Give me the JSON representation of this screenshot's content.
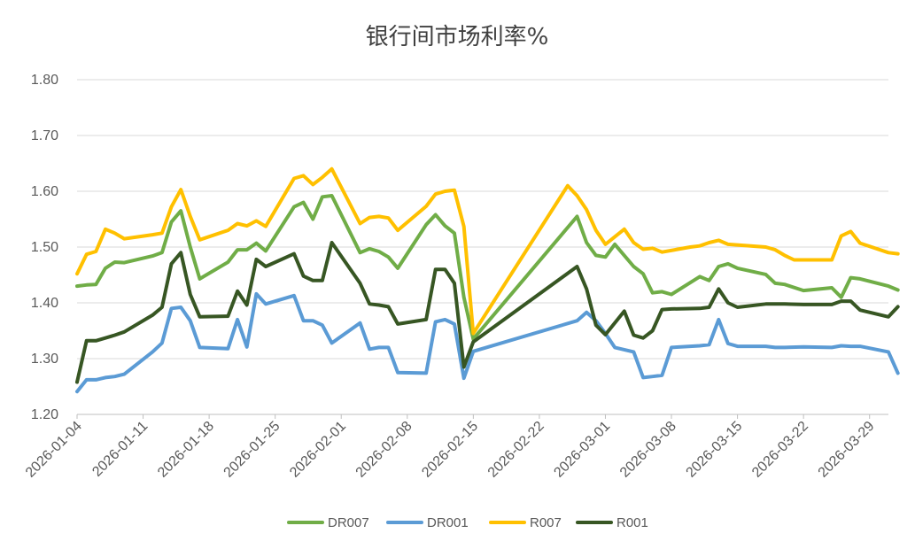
{
  "chart_data": {
    "type": "line",
    "title": "银行间市场利率%",
    "xlabel": "",
    "ylabel": "",
    "ylim": [
      1.2,
      1.8
    ],
    "yticks": [
      "1.20",
      "1.30",
      "1.40",
      "1.50",
      "1.60",
      "1.70",
      "1.80"
    ],
    "xlim": [
      "2026-01-04",
      "2026-03-31"
    ],
    "xticks": [
      "2026-01-04",
      "2026-01-11",
      "2026-01-18",
      "2026-01-25",
      "2026-02-01",
      "2026-02-08",
      "2026-02-15",
      "2026-02-22",
      "2026-03-01",
      "2026-03-08",
      "2026-03-15",
      "2026-03-22",
      "2026-03-29"
    ],
    "grid": true,
    "legend": "bottom",
    "series": [
      {
        "name": "DR007",
        "color": "#70ad47",
        "points": [
          [
            "2026-01-04",
            1.43
          ],
          [
            "2026-01-05",
            1.432
          ],
          [
            "2026-01-06",
            1.433
          ],
          [
            "2026-01-07",
            1.462
          ],
          [
            "2026-01-08",
            1.473
          ],
          [
            "2026-01-09",
            1.472
          ],
          [
            "2026-01-12",
            1.484
          ],
          [
            "2026-01-13",
            1.49
          ],
          [
            "2026-01-14",
            1.545
          ],
          [
            "2026-01-15",
            1.565
          ],
          [
            "2026-01-16",
            1.5
          ],
          [
            "2026-01-17",
            1.443
          ],
          [
            "2026-01-20",
            1.473
          ],
          [
            "2026-01-21",
            1.495
          ],
          [
            "2026-01-22",
            1.495
          ],
          [
            "2026-01-23",
            1.507
          ],
          [
            "2026-01-24",
            1.493
          ],
          [
            "2026-01-27",
            1.572
          ],
          [
            "2026-01-28",
            1.58
          ],
          [
            "2026-01-29",
            1.55
          ],
          [
            "2026-01-30",
            1.59
          ],
          [
            "2026-01-31",
            1.592
          ],
          [
            "2026-02-03",
            1.49
          ],
          [
            "2026-02-04",
            1.497
          ],
          [
            "2026-02-05",
            1.492
          ],
          [
            "2026-02-06",
            1.482
          ],
          [
            "2026-02-07",
            1.462
          ],
          [
            "2026-02-10",
            1.54
          ],
          [
            "2026-02-11",
            1.558
          ],
          [
            "2026-02-12",
            1.538
          ],
          [
            "2026-02-13",
            1.525
          ],
          [
            "2026-02-14",
            1.41
          ],
          [
            "2026-02-15",
            1.335
          ],
          [
            "2026-02-26",
            1.555
          ],
          [
            "2026-02-27",
            1.508
          ],
          [
            "2026-02-28",
            1.485
          ],
          [
            "2026-03-01",
            1.482
          ],
          [
            "2026-03-02",
            1.505
          ],
          [
            "2026-03-04",
            1.465
          ],
          [
            "2026-03-05",
            1.452
          ],
          [
            "2026-03-06",
            1.418
          ],
          [
            "2026-03-07",
            1.42
          ],
          [
            "2026-03-08",
            1.415
          ],
          [
            "2026-03-11",
            1.447
          ],
          [
            "2026-03-12",
            1.44
          ],
          [
            "2026-03-13",
            1.465
          ],
          [
            "2026-03-14",
            1.47
          ],
          [
            "2026-03-15",
            1.462
          ],
          [
            "2026-03-18",
            1.451
          ],
          [
            "2026-03-19",
            1.435
          ],
          [
            "2026-03-20",
            1.433
          ],
          [
            "2026-03-22",
            1.422
          ],
          [
            "2026-03-25",
            1.427
          ],
          [
            "2026-03-26",
            1.41
          ],
          [
            "2026-03-27",
            1.445
          ],
          [
            "2026-03-28",
            1.443
          ],
          [
            "2026-03-31",
            1.43
          ],
          [
            "2026-04-01",
            1.423
          ]
        ]
      },
      {
        "name": "DR001",
        "color": "#5b9bd5",
        "points": [
          [
            "2026-01-04",
            1.241
          ],
          [
            "2026-01-05",
            1.262
          ],
          [
            "2026-01-06",
            1.262
          ],
          [
            "2026-01-07",
            1.266
          ],
          [
            "2026-01-08",
            1.268
          ],
          [
            "2026-01-09",
            1.272
          ],
          [
            "2026-01-12",
            1.312
          ],
          [
            "2026-01-13",
            1.328
          ],
          [
            "2026-01-14",
            1.39
          ],
          [
            "2026-01-15",
            1.392
          ],
          [
            "2026-01-16",
            1.368
          ],
          [
            "2026-01-17",
            1.32
          ],
          [
            "2026-01-20",
            1.318
          ],
          [
            "2026-01-21",
            1.37
          ],
          [
            "2026-01-22",
            1.321
          ],
          [
            "2026-01-23",
            1.416
          ],
          [
            "2026-01-24",
            1.398
          ],
          [
            "2026-01-27",
            1.413
          ],
          [
            "2026-01-28",
            1.368
          ],
          [
            "2026-01-29",
            1.368
          ],
          [
            "2026-01-30",
            1.36
          ],
          [
            "2026-01-31",
            1.328
          ],
          [
            "2026-02-03",
            1.364
          ],
          [
            "2026-02-04",
            1.317
          ],
          [
            "2026-02-05",
            1.32
          ],
          [
            "2026-02-06",
            1.32
          ],
          [
            "2026-02-07",
            1.275
          ],
          [
            "2026-02-10",
            1.274
          ],
          [
            "2026-02-11",
            1.366
          ],
          [
            "2026-02-12",
            1.37
          ],
          [
            "2026-02-13",
            1.362
          ],
          [
            "2026-02-14",
            1.265
          ],
          [
            "2026-02-15",
            1.313
          ],
          [
            "2026-02-26",
            1.368
          ],
          [
            "2026-02-27",
            1.383
          ],
          [
            "2026-02-28",
            1.368
          ],
          [
            "2026-03-01",
            1.345
          ],
          [
            "2026-03-02",
            1.32
          ],
          [
            "2026-03-04",
            1.312
          ],
          [
            "2026-03-05",
            1.266
          ],
          [
            "2026-03-06",
            1.268
          ],
          [
            "2026-03-07",
            1.27
          ],
          [
            "2026-03-08",
            1.32
          ],
          [
            "2026-03-11",
            1.323
          ],
          [
            "2026-03-12",
            1.325
          ],
          [
            "2026-03-13",
            1.37
          ],
          [
            "2026-03-14",
            1.327
          ],
          [
            "2026-03-15",
            1.322
          ],
          [
            "2026-03-18",
            1.322
          ],
          [
            "2026-03-19",
            1.32
          ],
          [
            "2026-03-20",
            1.32
          ],
          [
            "2026-03-22",
            1.321
          ],
          [
            "2026-03-25",
            1.32
          ],
          [
            "2026-03-26",
            1.323
          ],
          [
            "2026-03-27",
            1.322
          ],
          [
            "2026-03-28",
            1.322
          ],
          [
            "2026-03-31",
            1.312
          ],
          [
            "2026-04-01",
            1.274
          ]
        ]
      },
      {
        "name": "R007",
        "color": "#ffc000",
        "points": [
          [
            "2026-01-04",
            1.452
          ],
          [
            "2026-01-05",
            1.487
          ],
          [
            "2026-01-06",
            1.492
          ],
          [
            "2026-01-07",
            1.532
          ],
          [
            "2026-01-08",
            1.525
          ],
          [
            "2026-01-09",
            1.515
          ],
          [
            "2026-01-12",
            1.522
          ],
          [
            "2026-01-13",
            1.525
          ],
          [
            "2026-01-14",
            1.572
          ],
          [
            "2026-01-15",
            1.603
          ],
          [
            "2026-01-16",
            1.555
          ],
          [
            "2026-01-17",
            1.513
          ],
          [
            "2026-01-20",
            1.53
          ],
          [
            "2026-01-21",
            1.542
          ],
          [
            "2026-01-22",
            1.538
          ],
          [
            "2026-01-23",
            1.547
          ],
          [
            "2026-01-24",
            1.537
          ],
          [
            "2026-01-27",
            1.623
          ],
          [
            "2026-01-28",
            1.628
          ],
          [
            "2026-01-29",
            1.612
          ],
          [
            "2026-01-30",
            1.625
          ],
          [
            "2026-01-31",
            1.64
          ],
          [
            "2026-02-03",
            1.542
          ],
          [
            "2026-02-04",
            1.553
          ],
          [
            "2026-02-05",
            1.555
          ],
          [
            "2026-02-06",
            1.552
          ],
          [
            "2026-02-07",
            1.53
          ],
          [
            "2026-02-10",
            1.573
          ],
          [
            "2026-02-11",
            1.595
          ],
          [
            "2026-02-12",
            1.6
          ],
          [
            "2026-02-13",
            1.602
          ],
          [
            "2026-02-14",
            1.537
          ],
          [
            "2026-02-15",
            1.345
          ],
          [
            "2026-02-25",
            1.61
          ],
          [
            "2026-02-26",
            1.592
          ],
          [
            "2026-02-27",
            1.567
          ],
          [
            "2026-02-28",
            1.53
          ],
          [
            "2026-03-01",
            1.505
          ],
          [
            "2026-03-03",
            1.532
          ],
          [
            "2026-03-04",
            1.508
          ],
          [
            "2026-03-05",
            1.496
          ],
          [
            "2026-03-06",
            1.498
          ],
          [
            "2026-03-07",
            1.491
          ],
          [
            "2026-03-10",
            1.5
          ],
          [
            "2026-03-11",
            1.502
          ],
          [
            "2026-03-12",
            1.508
          ],
          [
            "2026-03-13",
            1.512
          ],
          [
            "2026-03-14",
            1.505
          ],
          [
            "2026-03-18",
            1.5
          ],
          [
            "2026-03-19",
            1.495
          ],
          [
            "2026-03-20",
            1.485
          ],
          [
            "2026-03-21",
            1.477
          ],
          [
            "2026-03-25",
            1.477
          ],
          [
            "2026-03-26",
            1.52
          ],
          [
            "2026-03-27",
            1.528
          ],
          [
            "2026-03-28",
            1.507
          ],
          [
            "2026-03-31",
            1.49
          ],
          [
            "2026-04-01",
            1.488
          ]
        ]
      },
      {
        "name": "R001",
        "color": "#375623",
        "points": [
          [
            "2026-01-04",
            1.258
          ],
          [
            "2026-01-05",
            1.332
          ],
          [
            "2026-01-06",
            1.332
          ],
          [
            "2026-01-07",
            1.337
          ],
          [
            "2026-01-08",
            1.342
          ],
          [
            "2026-01-09",
            1.348
          ],
          [
            "2026-01-12",
            1.378
          ],
          [
            "2026-01-13",
            1.392
          ],
          [
            "2026-01-14",
            1.47
          ],
          [
            "2026-01-15",
            1.49
          ],
          [
            "2026-01-16",
            1.415
          ],
          [
            "2026-01-17",
            1.375
          ],
          [
            "2026-01-20",
            1.376
          ],
          [
            "2026-01-21",
            1.421
          ],
          [
            "2026-01-22",
            1.396
          ],
          [
            "2026-01-23",
            1.478
          ],
          [
            "2026-01-24",
            1.465
          ],
          [
            "2026-01-27",
            1.488
          ],
          [
            "2026-01-28",
            1.448
          ],
          [
            "2026-01-29",
            1.44
          ],
          [
            "2026-01-30",
            1.44
          ],
          [
            "2026-01-31",
            1.508
          ],
          [
            "2026-02-03",
            1.435
          ],
          [
            "2026-02-04",
            1.398
          ],
          [
            "2026-02-05",
            1.396
          ],
          [
            "2026-02-06",
            1.393
          ],
          [
            "2026-02-07",
            1.362
          ],
          [
            "2026-02-10",
            1.37
          ],
          [
            "2026-02-11",
            1.46
          ],
          [
            "2026-02-12",
            1.46
          ],
          [
            "2026-02-13",
            1.435
          ],
          [
            "2026-02-14",
            1.285
          ],
          [
            "2026-02-15",
            1.33
          ],
          [
            "2026-02-26",
            1.465
          ],
          [
            "2026-02-27",
            1.425
          ],
          [
            "2026-02-28",
            1.36
          ],
          [
            "2026-03-01",
            1.343
          ],
          [
            "2026-03-03",
            1.385
          ],
          [
            "2026-03-04",
            1.342
          ],
          [
            "2026-03-05",
            1.337
          ],
          [
            "2026-03-06",
            1.35
          ],
          [
            "2026-03-07",
            1.388
          ],
          [
            "2026-03-08",
            1.389
          ],
          [
            "2026-03-11",
            1.39
          ],
          [
            "2026-03-12",
            1.392
          ],
          [
            "2026-03-13",
            1.425
          ],
          [
            "2026-03-14",
            1.4
          ],
          [
            "2026-03-15",
            1.392
          ],
          [
            "2026-03-18",
            1.398
          ],
          [
            "2026-03-19",
            1.398
          ],
          [
            "2026-03-20",
            1.398
          ],
          [
            "2026-03-22",
            1.397
          ],
          [
            "2026-03-25",
            1.397
          ],
          [
            "2026-03-26",
            1.403
          ],
          [
            "2026-03-27",
            1.403
          ],
          [
            "2026-03-28",
            1.387
          ],
          [
            "2026-03-31",
            1.375
          ],
          [
            "2026-04-01",
            1.393
          ]
        ]
      }
    ]
  }
}
